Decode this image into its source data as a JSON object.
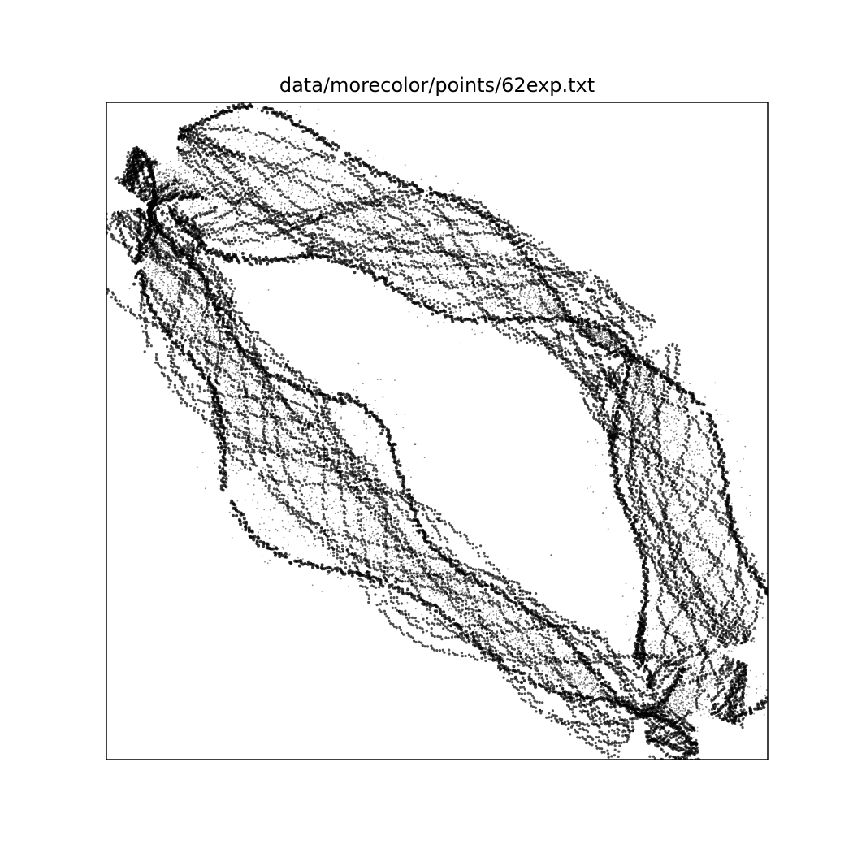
{
  "chart_data": {
    "type": "scatter",
    "title": "data/morecolor/points/62exp.txt",
    "xlabel": "",
    "ylabel": "",
    "axes_ticks": "none",
    "grid": false,
    "legend": "none",
    "marker_color": "#000000",
    "description_of_data": "dense point cloud forming a twisted closed loop (strange-attractor-like)",
    "xlim": [
      0,
      1
    ],
    "ylim": [
      0,
      1
    ],
    "outlier_points": [
      {
        "x": 0.217,
        "y": 0.955
      },
      {
        "x": 0.467,
        "y": 0.48
      },
      {
        "x": 0.751,
        "y": 0.375
      },
      {
        "x": 0.673,
        "y": 0.311
      }
    ]
  }
}
